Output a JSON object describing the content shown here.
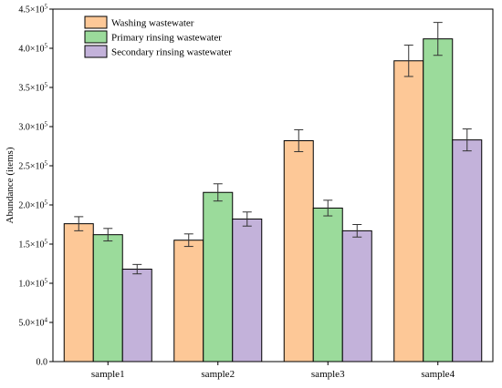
{
  "chart_data": {
    "type": "bar",
    "categories": [
      "sample1",
      "sample2",
      "sample3",
      "sample4"
    ],
    "series": [
      {
        "name": "Washing wastewater",
        "color": "#FDC897",
        "values": [
          176000,
          155000,
          282000,
          384000
        ],
        "errors": [
          9000,
          8000,
          14000,
          20000
        ]
      },
      {
        "name": "Primary rinsing wastewater",
        "color": "#9BDB9B",
        "values": [
          162000,
          216000,
          196000,
          412000
        ],
        "errors": [
          8000,
          11000,
          10000,
          21000
        ]
      },
      {
        "name": "Secondary rinsing wastewater",
        "color": "#C3B2DA",
        "values": [
          118000,
          182000,
          167000,
          283000
        ],
        "errors": [
          6000,
          9000,
          8000,
          14000
        ]
      }
    ],
    "ylabel": "Abundance (items)",
    "xlabel": "",
    "ylim": [
      0,
      450000
    ],
    "ytick_labels": [
      {
        "value": 0,
        "mantissa": "0.0",
        "exp": ""
      },
      {
        "value": 50000,
        "mantissa": "5.0×10",
        "exp": "4"
      },
      {
        "value": 100000,
        "mantissa": "1.0×10",
        "exp": "5"
      },
      {
        "value": 150000,
        "mantissa": "1.5×10",
        "exp": "5"
      },
      {
        "value": 200000,
        "mantissa": "2.0×10",
        "exp": "5"
      },
      {
        "value": 250000,
        "mantissa": "2.5×10",
        "exp": "5"
      },
      {
        "value": 300000,
        "mantissa": "3.0×10",
        "exp": "5"
      },
      {
        "value": 350000,
        "mantissa": "3.5×10",
        "exp": "5"
      },
      {
        "value": 400000,
        "mantissa": "4.0×10",
        "exp": "5"
      },
      {
        "value": 450000,
        "mantissa": "4.5×10",
        "exp": "5"
      }
    ],
    "legend_position": "top-left",
    "grid": false
  }
}
